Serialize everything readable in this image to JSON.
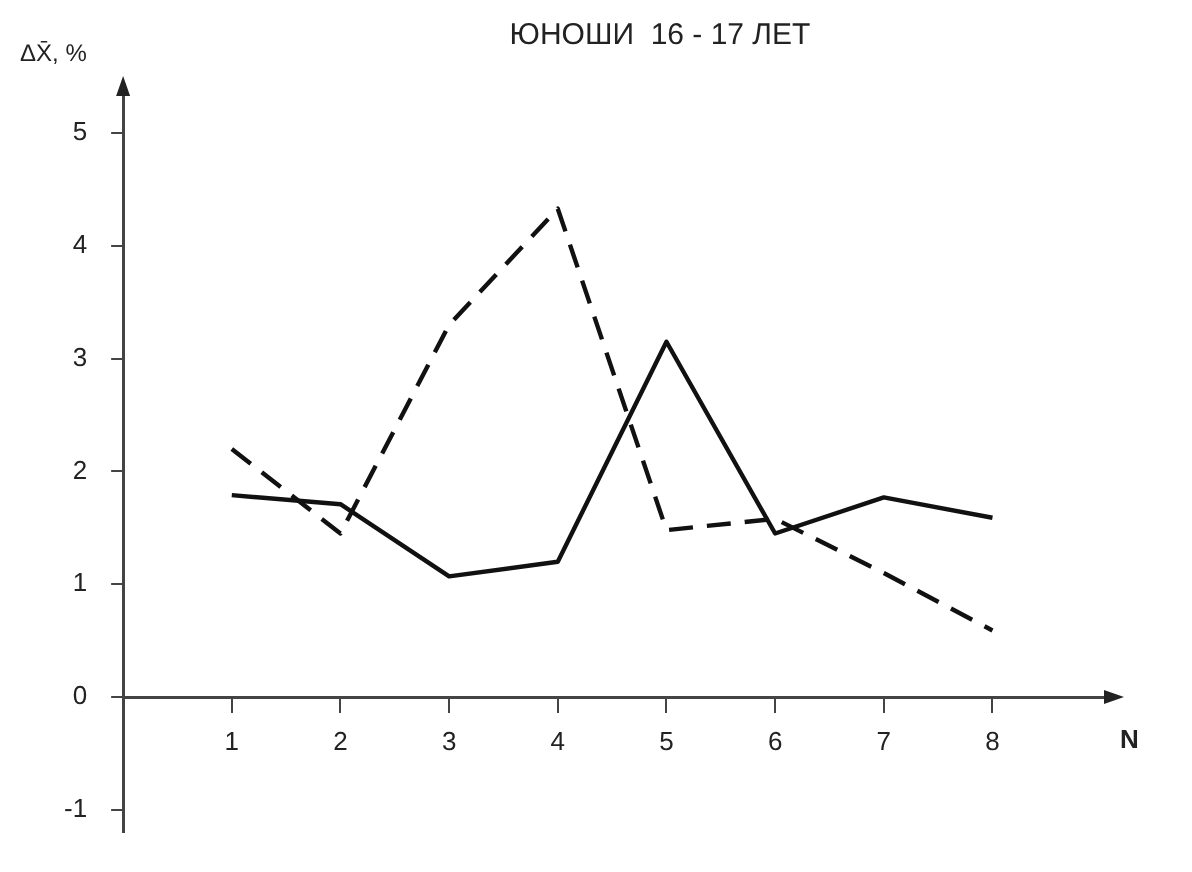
{
  "chart_data": {
    "type": "line",
    "title": "ЮНОШИ  16 - 17 ЛЕТ",
    "xlabel": "N",
    "ylabel": "ΔX̄, %",
    "x": [
      1,
      2,
      3,
      4,
      5,
      6,
      7,
      8
    ],
    "series": [
      {
        "color": "#111111",
        "line_style": "solid",
        "values": [
          1.79,
          1.71,
          1.07,
          1.2,
          3.15,
          1.45,
          1.77,
          1.59
        ]
      },
      {
        "color": "#111111",
        "line_style": "dashed",
        "values": [
          2.2,
          1.45,
          3.3,
          4.33,
          1.48,
          1.58,
          1.1,
          0.59
        ]
      }
    ],
    "xlim": [
      0,
      9.1
    ],
    "xticks": [
      1,
      2,
      3,
      4,
      5,
      6,
      7,
      8
    ],
    "ylim": [
      -1.2,
      5.4
    ],
    "yticks": [
      -1,
      0,
      1,
      2,
      3,
      4,
      5
    ],
    "grid": false,
    "legend": false,
    "marker": "none"
  }
}
